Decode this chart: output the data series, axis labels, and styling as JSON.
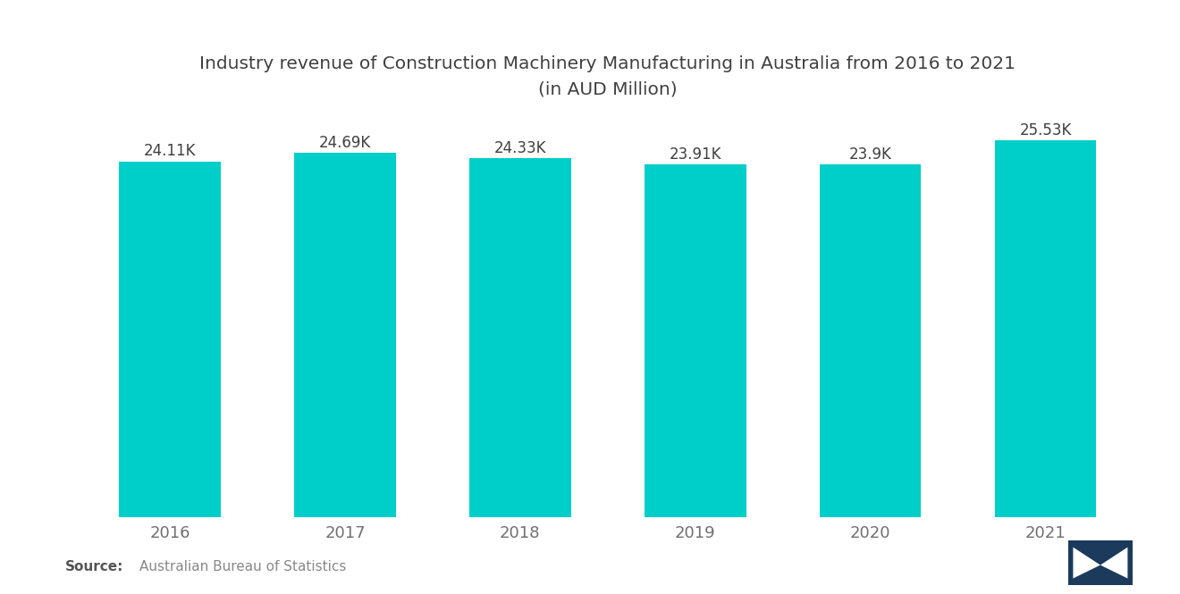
{
  "title_line1": "Industry revenue of Construction Machinery Manufacturing in Australia from 2016 to 2021",
  "title_line2": "(in AUD Million)",
  "years": [
    "2016",
    "2017",
    "2018",
    "2019",
    "2020",
    "2021"
  ],
  "values": [
    24110,
    24690,
    24330,
    23910,
    23900,
    25530
  ],
  "labels": [
    "24.11K",
    "24.69K",
    "24.33K",
    "23.91K",
    "23.9K",
    "25.53K"
  ],
  "bar_color": "#00CEC9",
  "background_color": "#FFFFFF",
  "title_color": "#404040",
  "label_color": "#404040",
  "tick_color": "#707070",
  "source_bold": "Source:",
  "source_text": "Australian Bureau of Statistics",
  "ylim_min": 0,
  "ylim_max": 27000,
  "title_fontsize": 14.5,
  "label_fontsize": 12,
  "tick_fontsize": 13,
  "source_fontsize": 11
}
